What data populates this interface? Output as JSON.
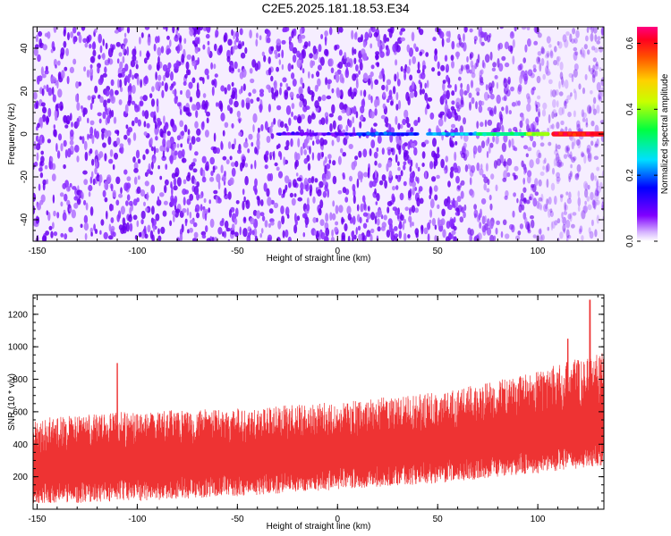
{
  "title": "C2E5.2025.181.18.53.E34",
  "colors": {
    "signal": "#ee3333",
    "background_speckle": "#7a00ff",
    "axis": "#000000"
  },
  "chart_data": [
    {
      "type": "heatmap",
      "title": "",
      "xlabel": "Height of straight line (km)",
      "ylabel": "Frequency (Hz)",
      "xlim": [
        -152,
        133
      ],
      "ylim": [
        -50,
        50
      ],
      "xticks": [
        -150,
        -100,
        -50,
        0,
        50,
        100
      ],
      "yticks": [
        -40,
        -20,
        0,
        20,
        40
      ],
      "colorbar": {
        "label": "Normalized spectral amplitude",
        "range": [
          0,
          0.65
        ],
        "ticks": [
          "0.0",
          "0.2",
          "0.4",
          "0.6"
        ],
        "colormap": "rainbow (white→purple→blue→cyan→green→yellow→orange→red→magenta)"
      },
      "ridge": {
        "frequency_hz": 0,
        "segments": [
          {
            "x_start": -30,
            "x_end": 10,
            "amplitude": 0.1
          },
          {
            "x_start": 10,
            "x_end": 40,
            "amplitude": 0.18
          },
          {
            "x_start": 45,
            "x_end": 70,
            "amplitude": 0.22
          },
          {
            "x_start": 70,
            "x_end": 95,
            "amplitude": 0.3
          },
          {
            "x_start": 95,
            "x_end": 105,
            "amplitude": 0.4
          },
          {
            "x_start": 108,
            "x_end": 133,
            "amplitude": 0.6
          }
        ]
      }
    },
    {
      "type": "line",
      "title": "",
      "xlabel": "Height of straight line (km)",
      "ylabel": "SNR (10 * v/v)",
      "xlim": [
        -152,
        133
      ],
      "ylim": [
        0,
        1320
      ],
      "xticks": [
        -150,
        -100,
        -50,
        0,
        50,
        100
      ],
      "yticks": [
        200,
        400,
        600,
        800,
        1000,
        1200
      ],
      "series": [
        {
          "baseline_trend": [
            {
              "x": -150,
              "y": 230
            },
            {
              "x": -100,
              "y": 250
            },
            {
              "x": -50,
              "y": 280
            },
            {
              "x": 0,
              "y": 320
            },
            {
              "x": 50,
              "y": 360
            },
            {
              "x": 100,
              "y": 420
            },
            {
              "x": 133,
              "y": 470
            }
          ],
          "upper_envelope": [
            {
              "x": -150,
              "y": 560
            },
            {
              "x": -110,
              "y": 600
            },
            {
              "x": -50,
              "y": 620
            },
            {
              "x": 0,
              "y": 660
            },
            {
              "x": 50,
              "y": 720
            },
            {
              "x": 90,
              "y": 820
            },
            {
              "x": 133,
              "y": 980
            }
          ],
          "peaks": [
            {
              "x": -110,
              "y": 900
            },
            {
              "x": 115,
              "y": 1050
            },
            {
              "x": 126,
              "y": 1290
            }
          ]
        }
      ]
    }
  ]
}
